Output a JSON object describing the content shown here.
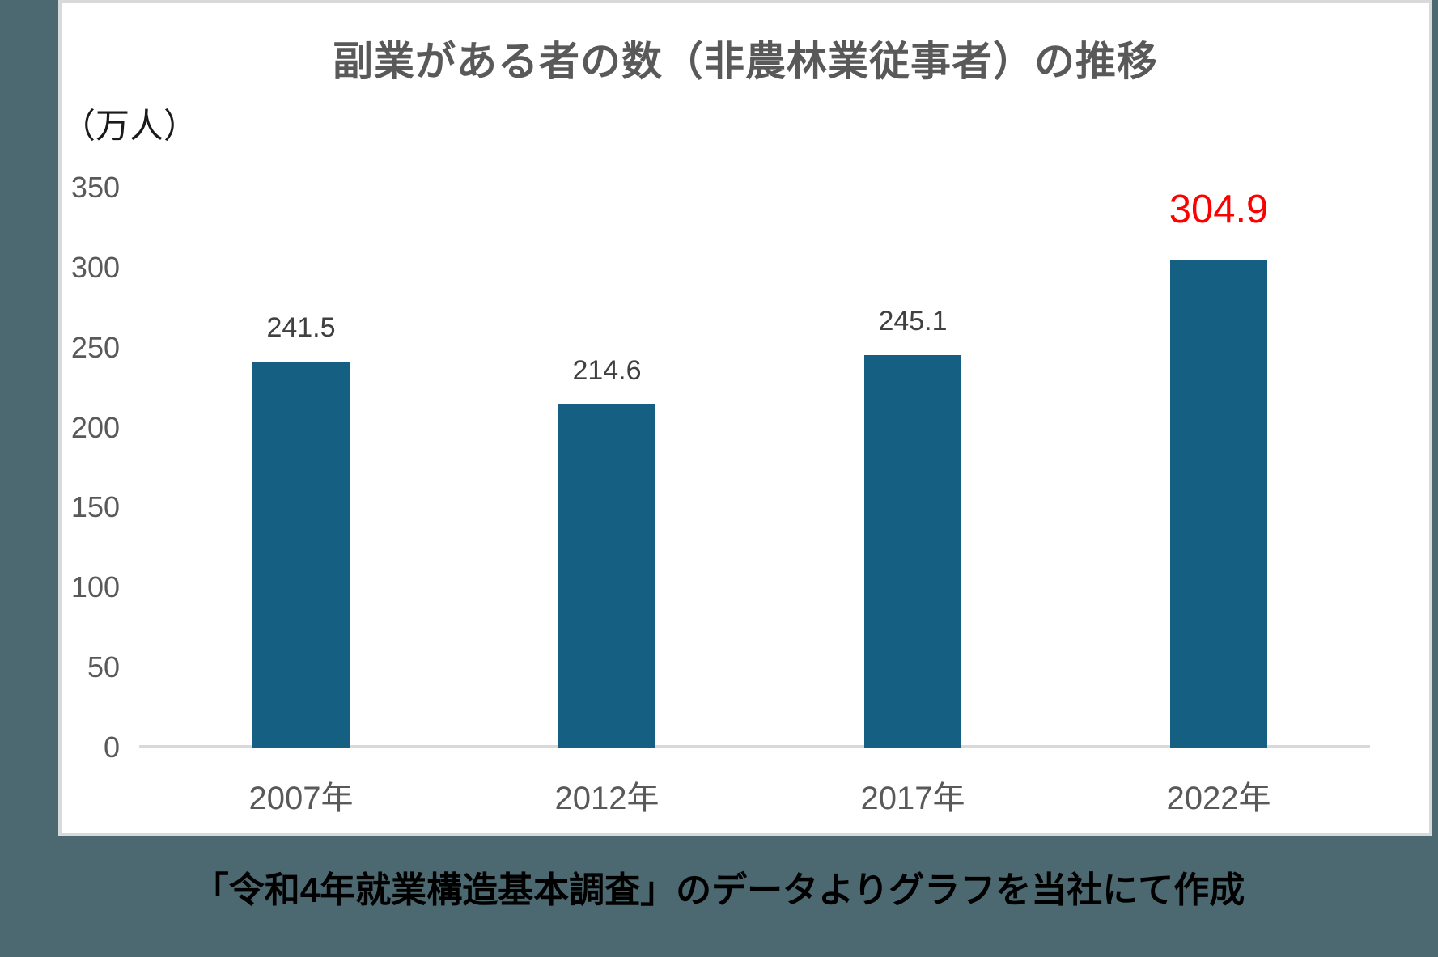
{
  "page": {
    "background_color": "#4C6870",
    "panel_background": "#FFFFFF",
    "panel_border_color": "#D9D9D9"
  },
  "title": "副業がある者の数（非農林業従事者）の推移",
  "unit_label": "（万人）",
  "footer": {
    "text": "「令和4年就業構造基本調査」のデータよりグラフを当社にて作成"
  },
  "chart_data": {
    "type": "bar",
    "title": "副業がある者の数（非農林業従事者）の推移",
    "unit": "万人",
    "categories": [
      "2007年",
      "2012年",
      "2017年",
      "2022年"
    ],
    "values": [
      241.5,
      214.6,
      245.1,
      304.9
    ],
    "data_labels": [
      "241.5",
      "214.6",
      "245.1",
      "304.9"
    ],
    "highlight_index": 3,
    "highlight_color": "#FF0000",
    "bar_color": "#156082",
    "axis_text_color": "#595959",
    "label_text_color": "#404040",
    "axis_line_color": "#D9D9D9",
    "y_ticks": [
      0,
      50,
      100,
      150,
      200,
      250,
      300,
      350
    ],
    "ylim": [
      0,
      350
    ],
    "xlabel": "",
    "ylabel": "（万人）",
    "grid": false,
    "legend": "none"
  }
}
